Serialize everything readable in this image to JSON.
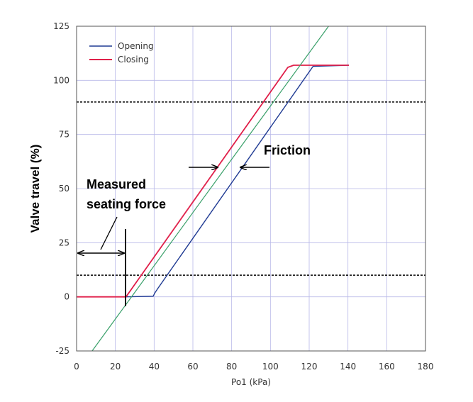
{
  "chart_data": {
    "type": "line",
    "xlabel": "Po1 (kPa)",
    "ylabel": "Valve travel (%)",
    "xlim": [
      0,
      180
    ],
    "ylim": [
      -25,
      125
    ],
    "xticks": [
      0,
      20,
      40,
      60,
      80,
      100,
      120,
      140,
      160,
      180
    ],
    "yticks": [
      -25,
      0,
      25,
      50,
      75,
      100,
      125
    ],
    "grid": true,
    "legend_position": "top-left",
    "series": [
      {
        "name": "Opening",
        "color": "#1f3a93",
        "x": [
          0,
          25,
          39.5,
          40.5,
          42,
          122,
          140.5
        ],
        "y": [
          0,
          0,
          0.3,
          2,
          4,
          106.5,
          107
        ]
      },
      {
        "name": "Closing",
        "color": "#e0204a",
        "x": [
          0,
          24.5,
          25.5,
          109,
          112,
          140.5
        ],
        "y": [
          0,
          0,
          0,
          106,
          107,
          107
        ]
      },
      {
        "name": "",
        "color": "#3aa06a",
        "x": [
          8,
          130
        ],
        "y": [
          -25,
          125
        ]
      }
    ],
    "reference_lines": [
      {
        "y": 90,
        "style": "dashed"
      },
      {
        "y": 10,
        "style": "dashed"
      }
    ],
    "annotations": {
      "friction": "Friction",
      "seating_line1": "Measured",
      "seating_line2": "seating force"
    }
  }
}
